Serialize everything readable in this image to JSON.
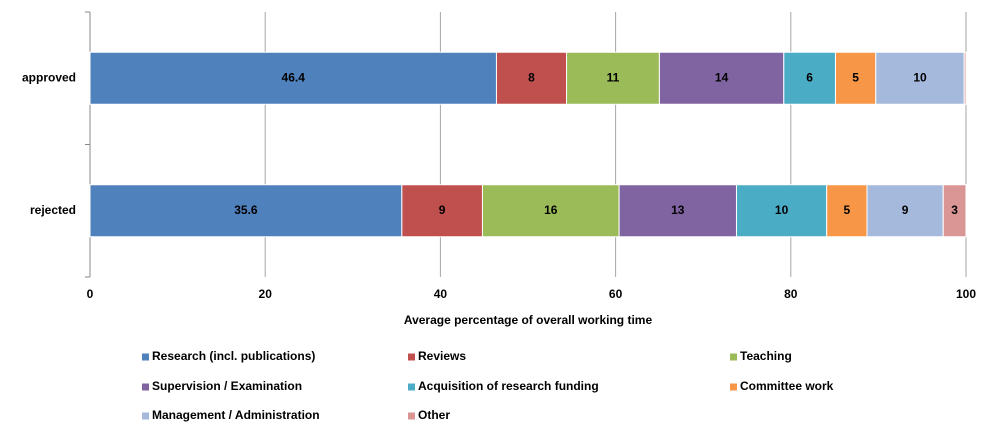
{
  "chart_data": {
    "type": "stacked_barh",
    "x_label": "Average percentage of overall working time",
    "categories": [
      "approved",
      "rejected"
    ],
    "series": [
      {
        "name": "Research (incl. publications)",
        "color": "#4f81bd",
        "values": [
          46.4,
          35.6
        ],
        "value_labels": [
          "46.4",
          "35.6"
        ]
      },
      {
        "name": "Reviews",
        "color": "#c0504d",
        "values": [
          8.0,
          9.2
        ],
        "value_labels": [
          "8",
          "9"
        ]
      },
      {
        "name": "Teaching",
        "color": "#9bbb59",
        "values": [
          10.6,
          15.6
        ],
        "value_labels": [
          "11",
          "16"
        ]
      },
      {
        "name": "Supervision / Examination",
        "color": "#8064a2",
        "values": [
          14.2,
          13.4
        ],
        "value_labels": [
          "14",
          "13"
        ]
      },
      {
        "name": "Acquisition of research funding",
        "color": "#4bacc6",
        "values": [
          5.9,
          10.3
        ],
        "value_labels": [
          "6",
          "10"
        ]
      },
      {
        "name": "Committee work",
        "color": "#f79646",
        "values": [
          4.6,
          4.6
        ],
        "value_labels": [
          "5",
          "5"
        ]
      },
      {
        "name": "Management / Administration",
        "color": "#a5b9dd",
        "values": [
          10.1,
          8.7
        ],
        "value_labels": [
          "10",
          "9"
        ]
      },
      {
        "name": "Other",
        "color": "#d99694",
        "values": [
          0.2,
          2.6
        ],
        "value_labels": [
          null,
          "3"
        ]
      }
    ],
    "xlim": [
      0,
      100
    ],
    "xticks": [
      0,
      20,
      40,
      60,
      80,
      100
    ],
    "grid": true,
    "legend": "bottom"
  }
}
